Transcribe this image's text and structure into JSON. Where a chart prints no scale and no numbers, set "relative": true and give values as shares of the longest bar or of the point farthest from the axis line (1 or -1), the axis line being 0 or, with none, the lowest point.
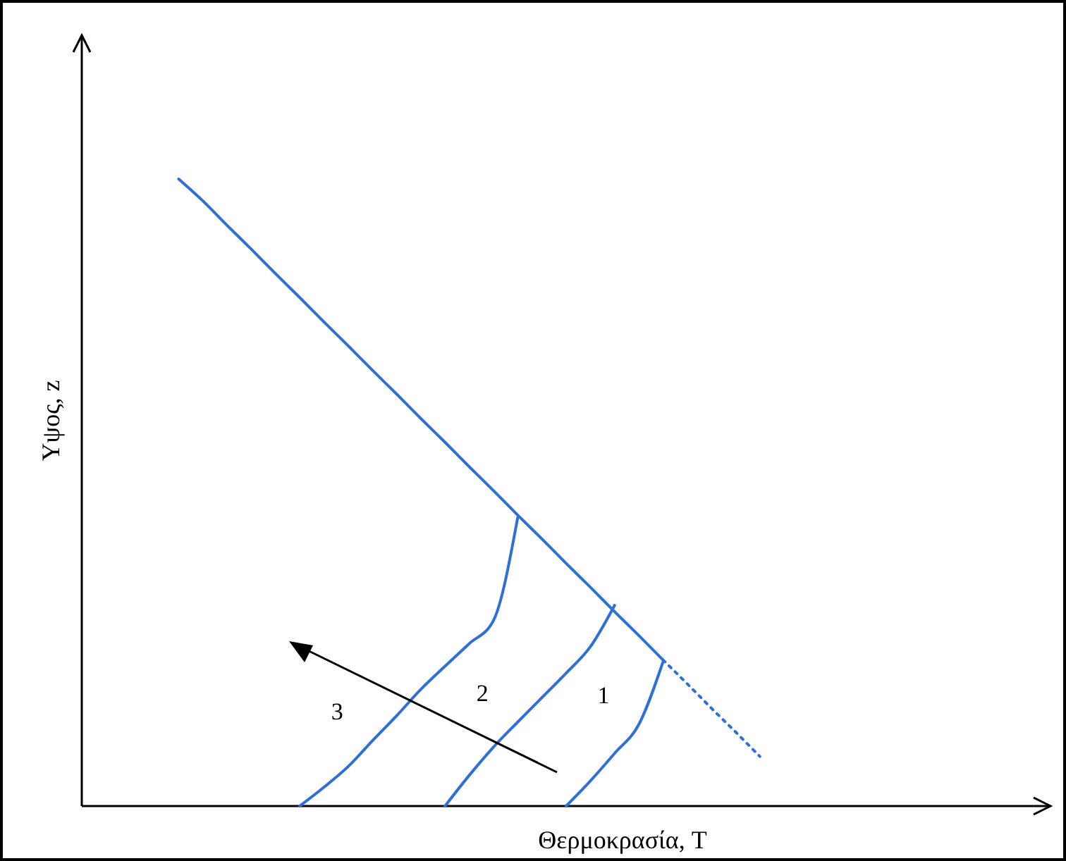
{
  "chart_data": {
    "type": "line",
    "relative": true,
    "xlabel": "Θερμοκρασία, T",
    "ylabel": "Υψος, z",
    "categories": [
      null,
      null,
      null,
      null,
      null,
      null,
      null,
      null,
      null,
      null,
      null,
      null,
      null,
      null,
      null,
      null,
      null,
      null,
      null,
      null,
      null,
      null,
      null,
      null,
      null,
      null,
      null,
      null,
      null,
      null,
      null,
      null,
      null,
      null,
      null,
      null,
      null,
      null,
      null,
      null,
      null
    ],
    "series": [
      {
        "color": "#2f6fd8",
        "values": [
          null,
          null,
          null,
          null,
          1,
          0.965,
          0.926,
          0.888,
          0.849,
          0.811,
          0.772,
          0.734,
          0.695,
          0.657,
          0.618,
          0.58,
          0.541,
          0.503,
          0.464,
          0.426,
          0.387,
          0.349,
          0.31,
          0.272,
          0.233,
          null,
          null,
          null,
          null,
          null,
          null,
          null,
          null,
          null,
          null,
          null,
          null,
          null,
          null,
          null,
          null
        ]
      },
      {
        "color": "#2f6fd8",
        "line_style": "dotted",
        "values": [
          null,
          null,
          null,
          null,
          null,
          null,
          null,
          null,
          null,
          null,
          null,
          null,
          null,
          null,
          null,
          null,
          null,
          null,
          null,
          null,
          null,
          null,
          null,
          null,
          0.233,
          0.195,
          0.156,
          0.118,
          0.079,
          null,
          null,
          null,
          null,
          null,
          null,
          null,
          null,
          null,
          null,
          null,
          null
        ]
      },
      {
        "name": "3",
        "color": "#2f6fd8",
        "values": [
          null,
          null,
          null,
          null,
          null,
          null,
          null,
          null,
          null,
          0,
          0.03,
          0.063,
          0.104,
          0.144,
          0.186,
          0.223,
          0.259,
          0.296,
          0.46,
          null,
          null,
          null,
          null,
          null,
          null,
          null,
          null,
          null,
          null,
          null,
          null,
          null,
          null,
          null,
          null,
          null,
          null,
          null,
          null,
          null,
          null
        ]
      },
      {
        "name": "2",
        "color": "#2f6fd8",
        "values": [
          null,
          null,
          null,
          null,
          null,
          null,
          null,
          null,
          null,
          null,
          null,
          null,
          null,
          null,
          null,
          0,
          0.049,
          0.094,
          0.134,
          0.173,
          0.212,
          0.254,
          0.32,
          null,
          null,
          null,
          null,
          null,
          null,
          null,
          null,
          null,
          null,
          null,
          null,
          null,
          null,
          null,
          null,
          null,
          null
        ]
      },
      {
        "name": "1",
        "color": "#2f6fd8",
        "values": [
          null,
          null,
          null,
          null,
          null,
          null,
          null,
          null,
          null,
          null,
          null,
          null,
          null,
          null,
          null,
          null,
          null,
          null,
          null,
          null,
          0,
          0.04,
          0.084,
          0.13,
          0.23,
          null,
          null,
          null,
          null,
          null,
          null,
          null,
          null,
          null,
          null,
          null,
          null,
          null,
          null,
          null,
          null
        ]
      }
    ]
  }
}
